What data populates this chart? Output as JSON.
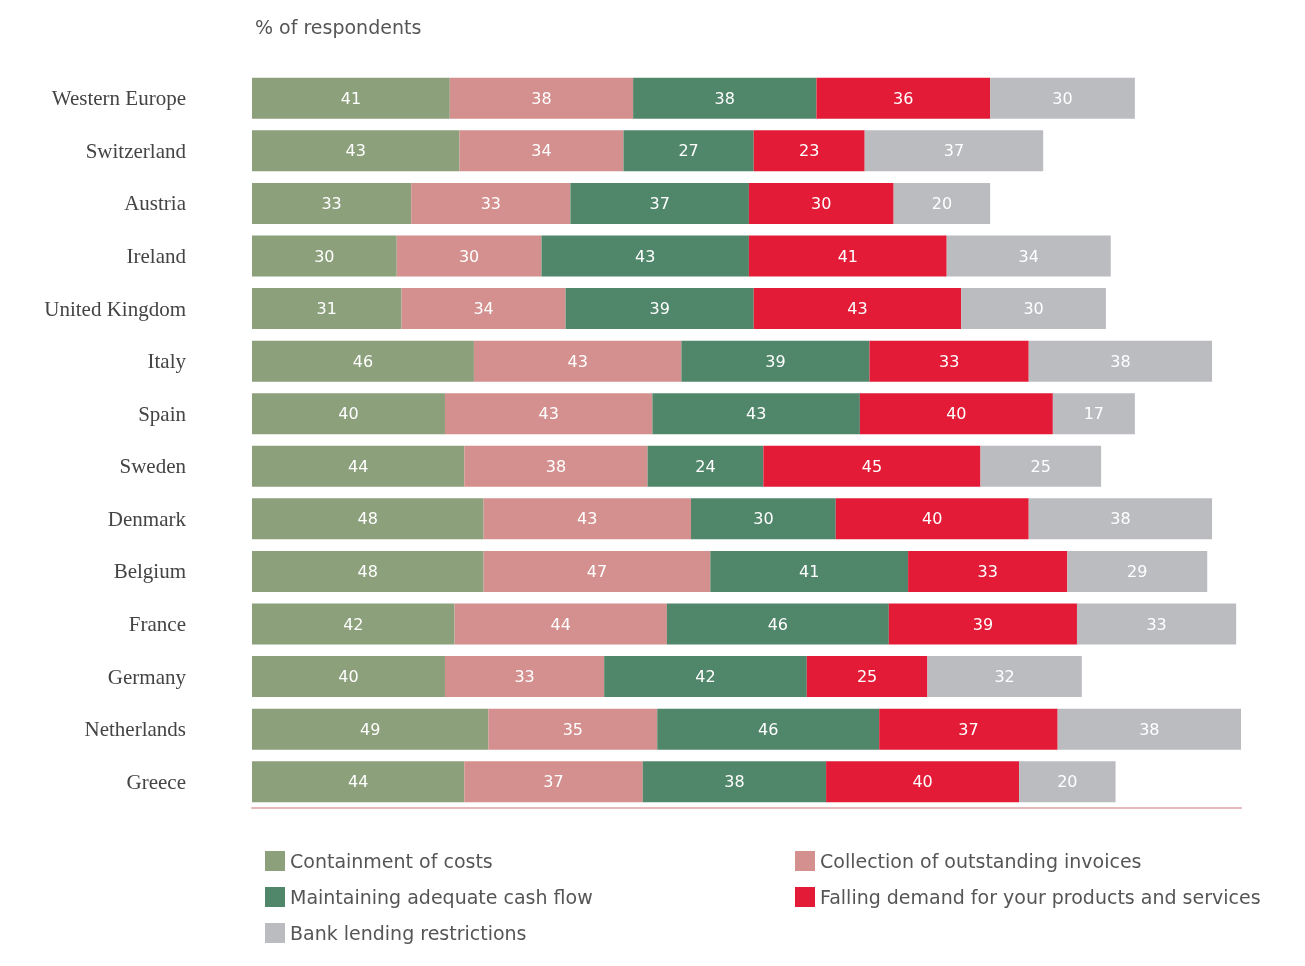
{
  "chart_data": {
    "type": "bar",
    "orientation": "horizontal",
    "stacked": true,
    "title": "% of respondents",
    "categories": [
      "Western Europe",
      "Switzerland",
      "Austria",
      "Ireland",
      "United Kingdom",
      "Italy",
      "Spain",
      "Sweden",
      "Denmark",
      "Belgium",
      "France",
      "Germany",
      "Netherlands",
      "Greece"
    ],
    "series": [
      {
        "name": "Containment of costs",
        "color": "#8ca07c",
        "values": [
          41,
          43,
          33,
          30,
          31,
          46,
          40,
          44,
          48,
          48,
          42,
          40,
          49,
          44
        ]
      },
      {
        "name": "Collection of outstanding invoices",
        "color": "#d4908e",
        "values": [
          38,
          34,
          33,
          30,
          34,
          43,
          43,
          38,
          43,
          47,
          44,
          33,
          35,
          37
        ]
      },
      {
        "name": "Maintaining adequate cash flow",
        "color": "#50866a",
        "values": [
          38,
          27,
          37,
          43,
          39,
          39,
          43,
          24,
          30,
          41,
          46,
          42,
          46,
          38
        ]
      },
      {
        "name": "Falling demand for your products and services",
        "color": "#e31b37",
        "values": [
          36,
          23,
          30,
          41,
          43,
          33,
          40,
          45,
          40,
          33,
          39,
          25,
          37,
          40
        ]
      },
      {
        "name": "Bank lending restrictions",
        "color": "#bbbcc0",
        "values": [
          30,
          37,
          20,
          34,
          30,
          38,
          17,
          25,
          38,
          29,
          33,
          32,
          38,
          20
        ]
      }
    ],
    "data_labels": true,
    "legend": "bottom",
    "grid": false,
    "tick_labels": "y"
  }
}
